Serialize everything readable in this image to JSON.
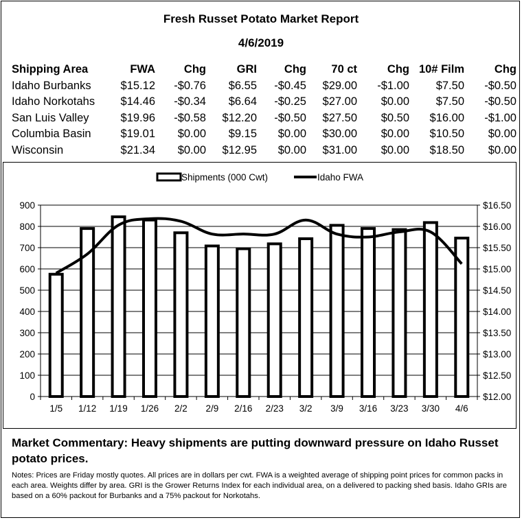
{
  "report": {
    "title": "Fresh Russet Potato Market Report",
    "date": "4/6/2019"
  },
  "prices_table": {
    "headers": [
      "Shipping Area",
      "FWA",
      "Chg",
      "GRI",
      "Chg",
      "70 ct",
      "Chg",
      "10# Film",
      "Chg"
    ],
    "rows": [
      [
        "Idaho Burbanks",
        "$15.12",
        "-$0.76",
        "$6.55",
        "-$0.45",
        "$29.00",
        "-$1.00",
        "$7.50",
        "-$0.50"
      ],
      [
        "Idaho Norkotahs",
        "$14.46",
        "-$0.34",
        "$6.64",
        "-$0.25",
        "$27.00",
        "$0.00",
        "$7.50",
        "-$0.50"
      ],
      [
        "San Luis Valley",
        "$19.96",
        "-$0.58",
        "$12.20",
        "-$0.50",
        "$27.50",
        "$0.50",
        "$16.00",
        "-$1.00"
      ],
      [
        "Columbia Basin",
        "$19.01",
        "$0.00",
        "$9.15",
        "$0.00",
        "$30.00",
        "$0.00",
        "$10.50",
        "$0.00"
      ],
      [
        "Wisconsin",
        "$21.34",
        "$0.00",
        "$12.95",
        "$0.00",
        "$31.00",
        "$0.00",
        "$18.50",
        "$0.00"
      ]
    ]
  },
  "chart_data": {
    "type": "bar",
    "categories": [
      "1/5",
      "1/12",
      "1/19",
      "1/26",
      "2/2",
      "2/9",
      "2/16",
      "2/23",
      "3/2",
      "3/9",
      "3/16",
      "3/23",
      "3/30",
      "4/6"
    ],
    "series": [
      {
        "name": "Shipments (000 Cwt)",
        "type": "bar",
        "axis": "left",
        "values": [
          575,
          790,
          845,
          830,
          770,
          708,
          695,
          718,
          742,
          805,
          790,
          785,
          818,
          745
        ]
      },
      {
        "name": "Idaho FWA",
        "type": "line",
        "axis": "right",
        "values": [
          14.9,
          15.35,
          16.03,
          16.18,
          16.12,
          15.82,
          15.82,
          15.82,
          16.15,
          15.82,
          15.75,
          15.87,
          15.87,
          15.12
        ]
      }
    ],
    "y_left": {
      "min": 0,
      "max": 900,
      "ticks": [
        "0",
        "100",
        "200",
        "300",
        "400",
        "500",
        "600",
        "700",
        "800",
        "900"
      ]
    },
    "y_right": {
      "min": 12.0,
      "max": 16.5,
      "ticks": [
        "$12.00",
        "$12.50",
        "$13.00",
        "$13.50",
        "$14.00",
        "$14.50",
        "$15.00",
        "$15.50",
        "$16.00",
        "$16.50"
      ]
    },
    "legend_position": "top-center",
    "grid": "horizontal",
    "colors": {
      "bar_fill": "#ffffff",
      "bar_stroke": "#000000",
      "line": "#000000",
      "grid": "#000000"
    }
  },
  "commentary": {
    "label": "Market Commentary: Heavy shipments are putting downward pressure on Idaho Russet potato prices."
  },
  "notes": {
    "text": "Notes: Prices are Friday mostly quotes. All prices are in dollars per cwt. FWA is a weighted average of shipping point prices for common packs in each area. Weights differ by area. GRI is the Grower Returns Index for each individual area, on a delivered to packing shed basis. Idaho GRIs are based on a 60% packout for Burbanks and a 75% packout for Norkotahs."
  }
}
